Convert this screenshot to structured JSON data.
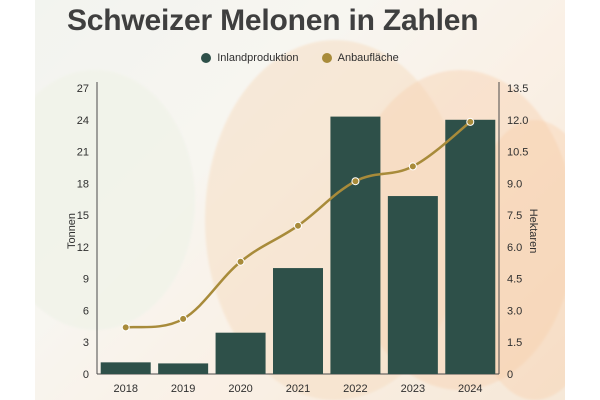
{
  "chart_data": {
    "type": "bar",
    "title": "Schweizer Melonen in Zahlen",
    "categories": [
      "2018",
      "2019",
      "2020",
      "2021",
      "2022",
      "2023",
      "2024"
    ],
    "series": [
      {
        "name": "Inlandproduktion",
        "type": "bar",
        "axis": "left",
        "color": "#2e5049",
        "values": [
          1.1,
          1.0,
          3.9,
          10.0,
          24.3,
          16.8,
          24.0
        ]
      },
      {
        "name": "Anbaufläche",
        "type": "line",
        "axis": "right",
        "color": "#a88b3a",
        "values": [
          2.2,
          2.6,
          5.3,
          7.0,
          9.1,
          9.8,
          11.9
        ]
      }
    ],
    "ylabel": "Tonnen",
    "y2label": "Hektaren",
    "ylim": [
      0,
      27
    ],
    "y2lim": [
      0,
      13.5
    ],
    "yticks": [
      "0",
      "3",
      "6",
      "9",
      "12",
      "15",
      "18",
      "21",
      "24",
      "27"
    ],
    "y2ticks": [
      "0",
      "1.5",
      "3.0",
      "4.5",
      "6.0",
      "7.5",
      "9.0",
      "10.5",
      "12.0",
      "13.5"
    ],
    "legend_position": "top-center",
    "grid": false
  }
}
